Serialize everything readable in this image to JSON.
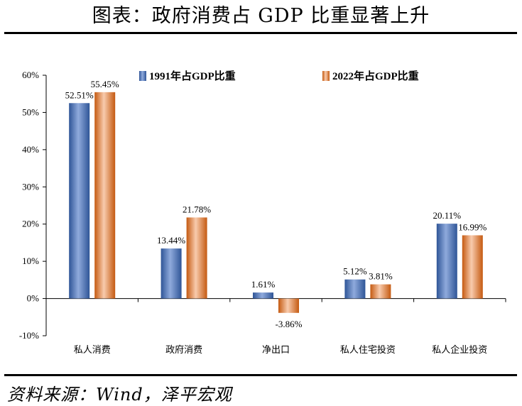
{
  "header": {
    "title": "图表：政府消费占 GDP 比重显著上升"
  },
  "footer": {
    "source": "资料来源：Wind，泽平宏观"
  },
  "colors": {
    "series1": "#4472C4",
    "series2": "#ED7D31",
    "axis": "#000000"
  },
  "chart_data": {
    "type": "bar",
    "title": "政府消费占 GDP 比重显著上升",
    "categories": [
      "私人消费",
      "政府消费",
      "净出口",
      "私人住宅投资",
      "私人企业投资"
    ],
    "series": [
      {
        "name": "1991年占GDP比重",
        "values": [
          52.51,
          13.44,
          1.61,
          5.12,
          20.11
        ],
        "labels": [
          "52.51%",
          "13.44%",
          "1.61%",
          "5.12%",
          "20.11%"
        ]
      },
      {
        "name": "2022年占GDP比重",
        "values": [
          55.45,
          21.78,
          -3.86,
          3.81,
          16.99
        ],
        "labels": [
          "55.45%",
          "21.78%",
          "-3.86%",
          "3.81%",
          "16.99%"
        ]
      }
    ],
    "ylim": [
      -10,
      60
    ],
    "yticks": [
      -10,
      0,
      10,
      20,
      30,
      40,
      50,
      60
    ],
    "ytick_labels": [
      "-10%",
      "0%",
      "10%",
      "20%",
      "30%",
      "40%",
      "50%",
      "60%"
    ],
    "xlabel": "",
    "ylabel": "",
    "legend_position": "top",
    "grid": false
  }
}
